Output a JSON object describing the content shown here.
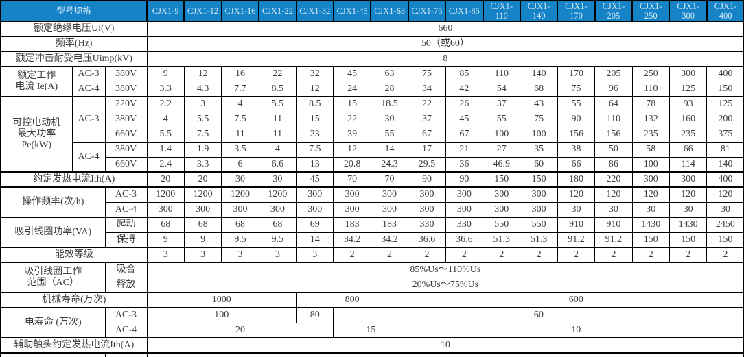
{
  "colors": {
    "header_bg": "#1583c6",
    "header_text": "#cfe9fa",
    "border": "#000000",
    "body_text": "#3d3d3d",
    "body_bg": "#ffffff"
  },
  "header": {
    "corner": "型号规格",
    "models": [
      "CJX1-9",
      "CJX1-12",
      "CJX1-16",
      "CJX1-22",
      "CJX1-32",
      "CJX1-45",
      "CJX1-63",
      "CJX1-75",
      "CJX1-85",
      "CJX1-110",
      "CJX1-140",
      "CJX1-170",
      "CJX1-205",
      "CJX1-250",
      "CJX1-300",
      "CJX1-400"
    ]
  },
  "layout": {
    "label_col_widths": [
      104,
      48,
      61
    ],
    "data_col_width": 54.4
  },
  "rows": [
    {
      "tb": true,
      "cells": [
        {
          "t": "额定绝缘电压Ui(V)",
          "cs": 3,
          "n": "label-rated-insulation-voltage"
        },
        {
          "t": "660",
          "cs": 16
        }
      ]
    },
    {
      "tb": true,
      "cells": [
        {
          "t": "频率(Hz)",
          "cs": 3,
          "n": "label-frequency"
        },
        {
          "t": "50（或60）",
          "cs": 16
        }
      ]
    },
    {
      "tb": true,
      "cells": [
        {
          "t": "额定冲击耐受电压Uimp(kV)",
          "cs": 3,
          "n": "label-impulse-withstand-voltage"
        },
        {
          "t": "8",
          "cs": 16
        }
      ]
    },
    {
      "cells": [
        {
          "t": "额定工作\n电流 Ie(A)",
          "rs": 2,
          "b2": true,
          "n": "label-rated-operating-current"
        },
        {
          "t": "AC-3",
          "n": "sub-label"
        },
        {
          "t": "380V",
          "n": "sub-label"
        }
      ],
      "vals": [
        "9",
        "12",
        "16",
        "22",
        "32",
        "45",
        "63",
        "75",
        "85",
        "110",
        "140",
        "170",
        "205",
        "250",
        "300",
        "400"
      ]
    },
    {
      "tb": true,
      "cells": [
        {
          "t": "AC-4",
          "n": "sub-label"
        },
        {
          "t": "380V",
          "n": "sub-label"
        }
      ],
      "vals": [
        "3.3",
        "4.3",
        "7.7",
        "8.5",
        "12",
        "24",
        "28",
        "34",
        "42",
        "54",
        "68",
        "75",
        "96",
        "110",
        "125",
        "150"
      ]
    },
    {
      "cells": [
        {
          "t": "可控电动机\n最大功率\nPe(kW)",
          "rs": 5,
          "b2": true,
          "n": "label-max-motor-power"
        },
        {
          "t": "AC-3",
          "rs": 3,
          "n": "sub-label"
        },
        {
          "t": "220V",
          "n": "sub-label"
        }
      ],
      "vals": [
        "2.2",
        "3",
        "4",
        "5.5",
        "8.5",
        "15",
        "18.5",
        "22",
        "26",
        "37",
        "43",
        "55",
        "64",
        "78",
        "93",
        "125"
      ]
    },
    {
      "cells": [
        {
          "t": "380V",
          "n": "sub-label"
        }
      ],
      "vals": [
        "4",
        "5.5",
        "7.5",
        "11",
        "15",
        "22",
        "30",
        "37",
        "45",
        "55",
        "75",
        "90",
        "110",
        "132",
        "160",
        "200"
      ]
    },
    {
      "cells": [
        {
          "t": "660V",
          "n": "sub-label"
        }
      ],
      "vals": [
        "5.5",
        "7.5",
        "11",
        "11",
        "23",
        "39",
        "55",
        "67",
        "67",
        "100",
        "100",
        "156",
        "156",
        "235",
        "235",
        "375"
      ]
    },
    {
      "cells": [
        {
          "t": "AC-4",
          "rs": 2,
          "b2": true,
          "n": "sub-label"
        },
        {
          "t": "380V",
          "n": "sub-label"
        }
      ],
      "vals": [
        "1.4",
        "1.9",
        "3.5",
        "4",
        "7.5",
        "12",
        "14",
        "17",
        "21",
        "27",
        "35",
        "38",
        "50",
        "58",
        "66",
        "81"
      ]
    },
    {
      "tb": true,
      "cells": [
        {
          "t": "660V",
          "n": "sub-label"
        }
      ],
      "vals": [
        "2.4",
        "3.3",
        "6",
        "6.6",
        "13",
        "20.8",
        "24.3",
        "29.5",
        "36",
        "46.9",
        "60",
        "66",
        "86",
        "100",
        "114",
        "140"
      ]
    },
    {
      "tb": true,
      "cells": [
        {
          "t": "约定发热电流Ith(A)",
          "cs": 3,
          "n": "label-conventional-thermal-current"
        }
      ],
      "vals": [
        "20",
        "20",
        "30",
        "30",
        "45",
        "70",
        "70",
        "90",
        "90",
        "150",
        "150",
        "180",
        "220",
        "300",
        "300",
        "400"
      ]
    },
    {
      "cells": [
        {
          "t": "操作频率(次/h)",
          "rs": 2,
          "cs": 2,
          "b2": true,
          "n": "label-operating-frequency"
        },
        {
          "t": "AC-3",
          "n": "sub-label"
        }
      ],
      "vals": [
        "1200",
        "1200",
        "1200",
        "1200",
        "300",
        "300",
        "300",
        "300",
        "300",
        "300",
        "300",
        "120",
        "120",
        "120",
        "120",
        "120"
      ]
    },
    {
      "tb": true,
      "cells": [
        {
          "t": "AC-4",
          "n": "sub-label"
        }
      ],
      "vals": [
        "300",
        "300",
        "300",
        "300",
        "300",
        "300",
        "300",
        "300",
        "300",
        "300",
        "300",
        "30",
        "30",
        "30",
        "30",
        "30"
      ]
    },
    {
      "cells": [
        {
          "t": "吸引线圈功率(VA)",
          "rs": 2,
          "cs": 2,
          "b2": true,
          "n": "label-coil-power"
        },
        {
          "t": "起动",
          "n": "sub-label"
        }
      ],
      "vals": [
        "68",
        "68",
        "68",
        "68",
        "69",
        "183",
        "183",
        "330",
        "330",
        "550",
        "550",
        "910",
        "910",
        "1430",
        "1430",
        "2450"
      ]
    },
    {
      "tb": true,
      "cells": [
        {
          "t": "保持",
          "n": "sub-label"
        }
      ],
      "vals": [
        "9",
        "9",
        "9.5",
        "9.5",
        "14",
        "34.2",
        "34.2",
        "36.6",
        "36.6",
        "51.3",
        "51.3",
        "91.2",
        "91.2",
        "150",
        "150",
        "150"
      ]
    },
    {
      "tb": true,
      "cells": [
        {
          "t": "能效等级",
          "cs": 3,
          "n": "label-energy-efficiency-grade"
        }
      ],
      "vals": [
        "3",
        "3",
        "3",
        "3",
        "3",
        "2",
        "2",
        "2",
        "2",
        "2",
        "2",
        "2",
        "2",
        "2",
        "2",
        "2"
      ]
    },
    {
      "cells": [
        {
          "t": "吸引线圈工作\n范围（AC）",
          "rs": 2,
          "cs": 2,
          "b2": true,
          "n": "label-coil-operating-range"
        },
        {
          "t": "吸合",
          "n": "sub-label"
        },
        {
          "t": "85%Us～110%Us",
          "cs": 16
        }
      ]
    },
    {
      "tb": true,
      "cells": [
        {
          "t": "释放",
          "n": "sub-label"
        },
        {
          "t": "20%Us～75%Us",
          "cs": 16
        }
      ]
    },
    {
      "tb": true,
      "cells": [
        {
          "t": "机械寿命(万次)",
          "cs": 3,
          "n": "label-mechanical-life"
        },
        {
          "t": "1000",
          "cs": 4
        },
        {
          "t": "800",
          "cs": 3
        },
        {
          "t": "600",
          "cs": 9
        }
      ]
    },
    {
      "cells": [
        {
          "t": "电寿命 (万次)",
          "rs": 2,
          "cs": 2,
          "b2": true,
          "n": "label-electrical-life"
        },
        {
          "t": "AC-3",
          "n": "sub-label"
        },
        {
          "t": "100",
          "cs": 4
        },
        {
          "t": "80"
        },
        {
          "t": "60",
          "cs": 11
        }
      ]
    },
    {
      "tb": true,
      "cells": [
        {
          "t": "AC-4",
          "n": "sub-label"
        },
        {
          "t": "20",
          "cs": 5
        },
        {
          "t": "15",
          "cs": 2
        },
        {
          "t": "10",
          "cs": 9
        }
      ]
    },
    {
      "tb": true,
      "cells": [
        {
          "t": "辅助触头约定发热电流Ith(A)",
          "cs": 3,
          "n": "label-aux-contact-thermal-current"
        },
        {
          "t": "10",
          "cs": 16
        }
      ]
    },
    {
      "partial": true,
      "cells": [
        {
          "t": "",
          "cs": 2
        },
        {
          "t": ""
        },
        {
          "t": "",
          "cs": 16
        }
      ]
    }
  ]
}
